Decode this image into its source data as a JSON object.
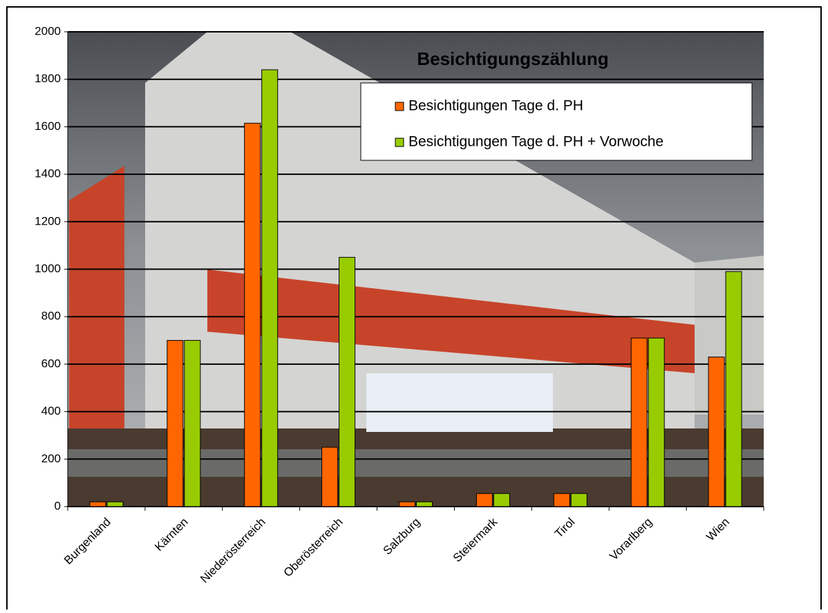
{
  "chart_data": {
    "type": "bar",
    "title": "Besichtigungszählung",
    "categories": [
      "Burgenland",
      "Kärnten",
      "Niederösterreich",
      "Oberösterreich",
      "Salzburg",
      "Steiermark",
      "Tirol",
      "Vorarlberg",
      "Wien"
    ],
    "series": [
      {
        "name": "Besichtigungen Tage d. PH",
        "color": "#ff6600",
        "values": [
          20,
          700,
          1615,
          250,
          20,
          55,
          55,
          710,
          630
        ]
      },
      {
        "name": "Besichtigungen Tage d. PH + Vorwoche",
        "color": "#99cc00",
        "values": [
          20,
          700,
          1840,
          1050,
          20,
          55,
          55,
          710,
          990
        ]
      }
    ],
    "ylim": [
      0,
      2000
    ],
    "yticks": [
      0,
      200,
      400,
      600,
      800,
      1000,
      1200,
      1400,
      1600,
      1800,
      2000
    ],
    "grid": true,
    "legend": "top-right"
  }
}
